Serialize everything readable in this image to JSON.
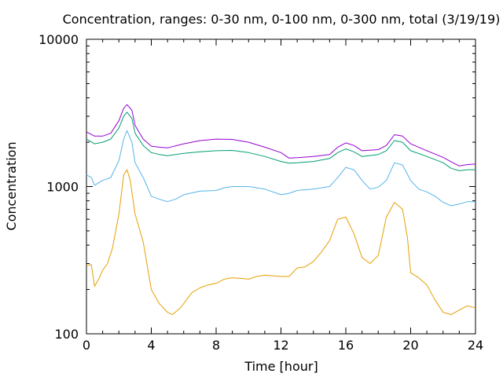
{
  "chart_data": {
    "type": "line",
    "title": "Concentration, ranges: 0-30 nm, 0-100 nm, 0-300 nm, total (3/19/19)",
    "xlabel": "Time [hour]",
    "ylabel": "Concentration",
    "xlim": [
      0,
      24
    ],
    "ylim": [
      100,
      10000
    ],
    "yscale": "log",
    "xticks": [
      "0",
      "4",
      "8",
      "12",
      "16",
      "20",
      "24"
    ],
    "yticks": [
      "100",
      "1000",
      "10000"
    ],
    "grid": false,
    "legend": "none",
    "series": [
      {
        "color": "#e69f00",
        "x": [
          0,
          0.3,
          0.5,
          0.8,
          1.0,
          1.3,
          1.6,
          2.0,
          2.3,
          2.5,
          2.7,
          3.0,
          3.5,
          4.0,
          4.5,
          5.0,
          5.3,
          5.8,
          6.5,
          7.0,
          7.5,
          8.0,
          8.5,
          9.0,
          9.5,
          10.0,
          10.5,
          11.0,
          12.0,
          12.5,
          13.0,
          13.5,
          14.0,
          14.5,
          15.0,
          15.5,
          16.0,
          16.5,
          17.0,
          17.5,
          18.0,
          18.5,
          19.0,
          19.5,
          19.8,
          20.0,
          20.5,
          21.0,
          21.5,
          22.0,
          22.5,
          23.0,
          23.5,
          24.0
        ],
        "values": [
          290,
          295,
          210,
          240,
          270,
          300,
          380,
          650,
          1200,
          1300,
          1100,
          650,
          420,
          200,
          160,
          140,
          135,
          150,
          190,
          205,
          215,
          220,
          235,
          240,
          238,
          235,
          245,
          250,
          245,
          245,
          280,
          285,
          310,
          360,
          430,
          600,
          620,
          480,
          330,
          300,
          340,
          620,
          780,
          700,
          450,
          260,
          240,
          215,
          170,
          140,
          135,
          145,
          155,
          150
        ]
      },
      {
        "color": "#56b4e9",
        "x": [
          0,
          0.3,
          0.5,
          1.0,
          1.5,
          2.0,
          2.3,
          2.5,
          2.8,
          3.0,
          3.5,
          4.0,
          4.5,
          5.0,
          5.5,
          6.0,
          7.0,
          8.0,
          8.5,
          9.0,
          10.0,
          11.0,
          12.0,
          12.5,
          13.0,
          14.0,
          15.0,
          15.5,
          16.0,
          16.5,
          17.0,
          17.5,
          18.0,
          18.5,
          19.0,
          19.5,
          20.0,
          20.5,
          21.0,
          21.5,
          22.0,
          22.5,
          23.0,
          23.5,
          24.0
        ],
        "values": [
          1200,
          1150,
          1020,
          1100,
          1150,
          1500,
          2100,
          2400,
          2000,
          1450,
          1150,
          860,
          820,
          790,
          820,
          880,
          930,
          940,
          980,
          1000,
          1000,
          960,
          880,
          900,
          940,
          960,
          1000,
          1150,
          1350,
          1300,
          1100,
          960,
          990,
          1100,
          1450,
          1400,
          1100,
          960,
          920,
          860,
          780,
          740,
          760,
          790,
          790
        ]
      },
      {
        "color": "#009e73",
        "x": [
          0,
          0.5,
          1.0,
          1.5,
          2.0,
          2.3,
          2.5,
          2.8,
          3.0,
          3.5,
          4.0,
          4.5,
          5.0,
          6.0,
          7.0,
          8.0,
          9.0,
          10.0,
          11.0,
          12.0,
          12.5,
          13.0,
          14.0,
          15.0,
          15.5,
          16.0,
          16.5,
          17.0,
          18.0,
          18.5,
          19.0,
          19.5,
          20.0,
          21.0,
          22.0,
          22.5,
          23.0,
          23.5,
          24.0
        ],
        "values": [
          2100,
          1950,
          2000,
          2100,
          2500,
          3000,
          3200,
          2900,
          2300,
          1900,
          1700,
          1650,
          1620,
          1680,
          1720,
          1750,
          1760,
          1700,
          1600,
          1480,
          1440,
          1450,
          1480,
          1550,
          1700,
          1800,
          1720,
          1600,
          1650,
          1750,
          2050,
          2000,
          1750,
          1600,
          1450,
          1330,
          1280,
          1300,
          1300
        ]
      },
      {
        "color": "#9400d3",
        "x": [
          0,
          0.5,
          1.0,
          1.5,
          2.0,
          2.3,
          2.5,
          2.8,
          3.0,
          3.5,
          4.0,
          4.5,
          5.0,
          6.0,
          7.0,
          8.0,
          9.0,
          10.0,
          11.0,
          12.0,
          12.5,
          13.0,
          14.0,
          15.0,
          15.5,
          16.0,
          16.5,
          17.0,
          18.0,
          18.5,
          19.0,
          19.5,
          20.0,
          21.0,
          22.0,
          22.5,
          23.0,
          23.5,
          24.0
        ],
        "values": [
          2350,
          2200,
          2200,
          2300,
          2800,
          3400,
          3600,
          3300,
          2600,
          2100,
          1880,
          1850,
          1830,
          1950,
          2050,
          2100,
          2090,
          2000,
          1850,
          1700,
          1560,
          1570,
          1600,
          1650,
          1850,
          1980,
          1900,
          1750,
          1780,
          1900,
          2250,
          2200,
          1950,
          1750,
          1580,
          1470,
          1380,
          1410,
          1420
        ]
      }
    ]
  }
}
